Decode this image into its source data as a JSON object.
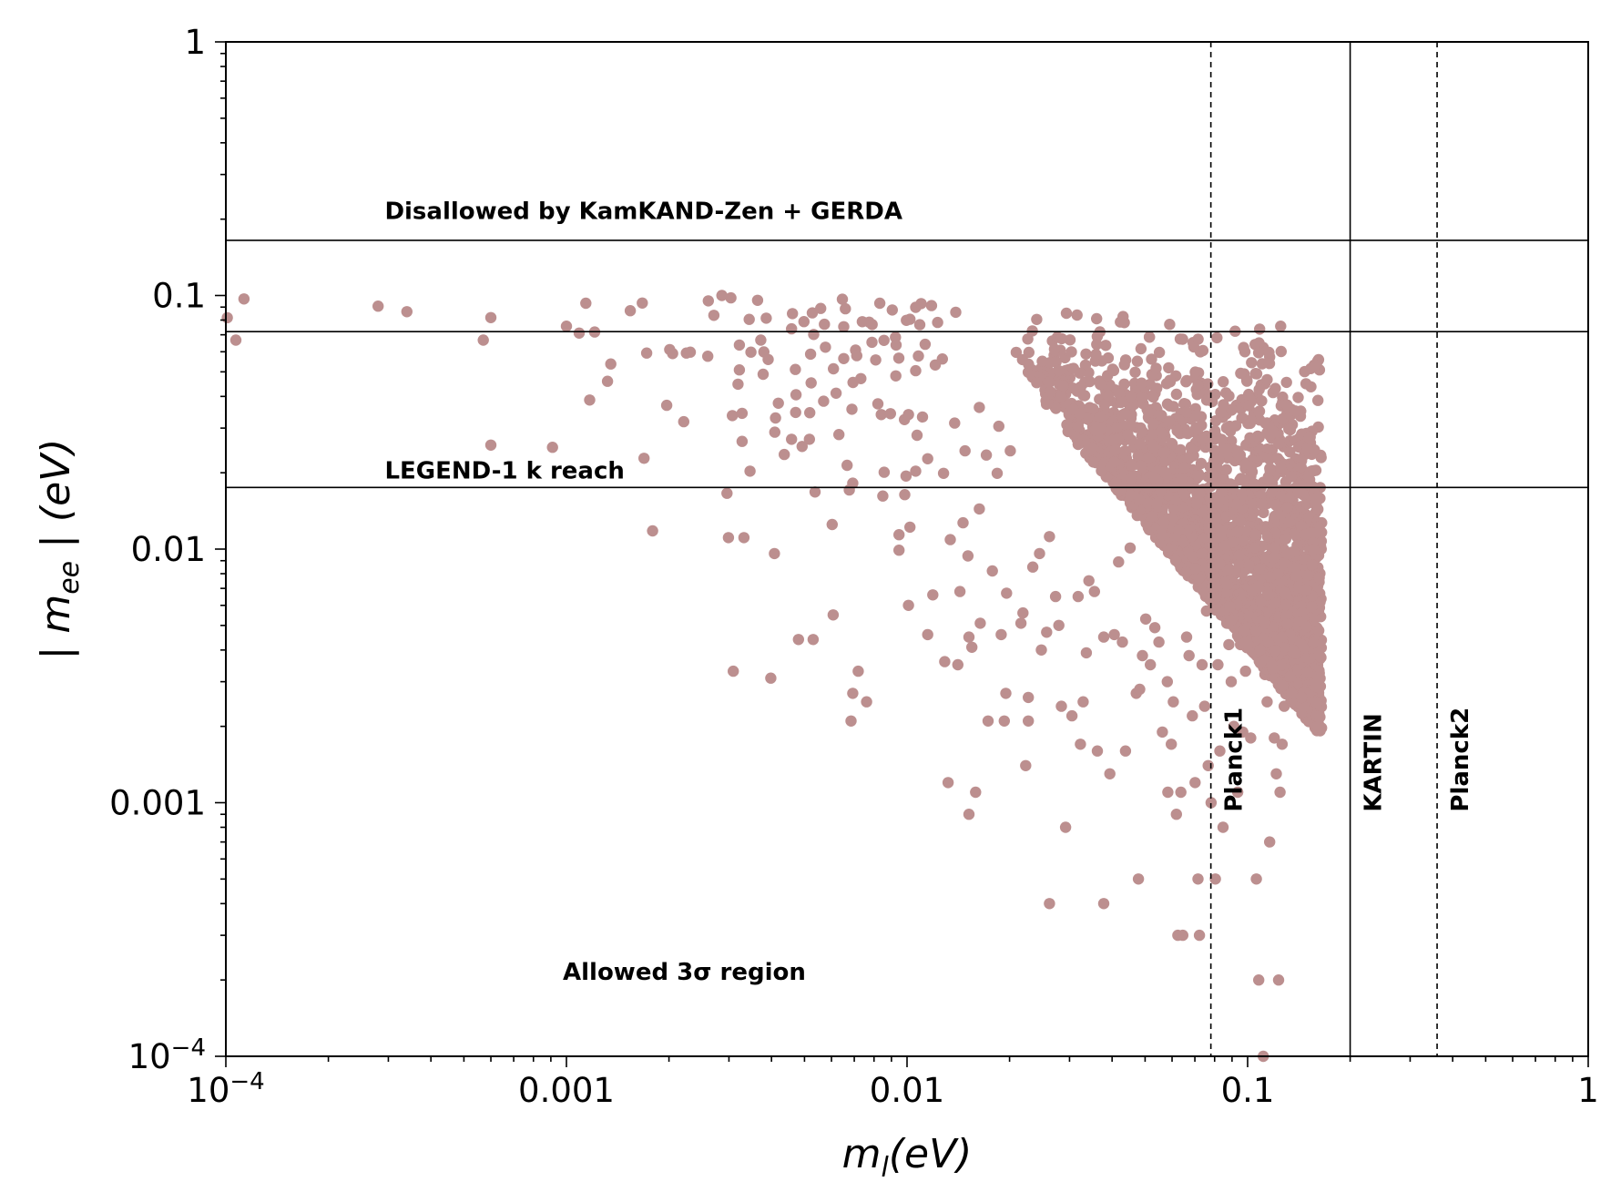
{
  "chart_data": {
    "type": "scatter",
    "xscale": "log",
    "yscale": "log",
    "xlim": [
      0.0001,
      1
    ],
    "ylim": [
      0.0001,
      1
    ],
    "xlabel": {
      "base": "m",
      "sub": "l",
      "unit": "(eV)"
    },
    "ylabel": {
      "prefix": "| ",
      "base": "m",
      "sub": "ee",
      "suffix": " | (eV)"
    },
    "x_ticks": [
      {
        "value": 0.0001,
        "label": "10",
        "sup": "−4"
      },
      {
        "value": 0.001,
        "label": "0.001"
      },
      {
        "value": 0.01,
        "label": "0.01"
      },
      {
        "value": 0.1,
        "label": "0.1"
      },
      {
        "value": 1,
        "label": "1"
      }
    ],
    "y_ticks": [
      {
        "value": 0.0001,
        "label": "10",
        "sup": "−4"
      },
      {
        "value": 0.001,
        "label": "0.001"
      },
      {
        "value": 0.01,
        "label": "0.01"
      },
      {
        "value": 0.1,
        "label": "0.1"
      },
      {
        "value": 1,
        "label": "1"
      }
    ],
    "point_color": "#bc8f8f",
    "hlines": [
      {
        "y": 0.165,
        "style": "solid"
      },
      {
        "y": 0.072,
        "style": "solid"
      },
      {
        "y": 0.0175,
        "style": "solid"
      }
    ],
    "vlines": [
      {
        "x": 0.078,
        "style": "dashed",
        "label": "Planck1"
      },
      {
        "x": 0.2,
        "style": "solid",
        "label": "KARTIN"
      },
      {
        "x": 0.36,
        "style": "dashed",
        "label": "Planck2"
      }
    ],
    "annotations": [
      {
        "text": "Disallowed by KamKAND-Zen + GERDA",
        "x": 0.0003,
        "y": 0.2
      },
      {
        "text": "LEGEND-1 k reach",
        "x": 0.0003,
        "y": 0.019
      },
      {
        "text": "Allowed 3σ region",
        "x": 0.001,
        "y": 0.0002
      }
    ],
    "points": [
      [
        0.000101,
        0.0817
      ],
      [
        0.000107,
        0.0667
      ],
      [
        0.000113,
        0.0969
      ],
      [
        0.00028,
        0.0908
      ],
      [
        0.00034,
        0.0863
      ],
      [
        0.00057,
        0.0667
      ],
      [
        0.0006,
        0.0818
      ],
      [
        0.0006,
        0.0257
      ],
      [
        0.00091,
        0.0252
      ],
      [
        0.001,
        0.0757
      ],
      [
        0.00109,
        0.0711
      ],
      [
        0.00114,
        0.0932
      ],
      [
        0.00121,
        0.0718
      ],
      [
        0.00117,
        0.0387
      ],
      [
        0.00132,
        0.0459
      ],
      [
        0.00135,
        0.0537
      ],
      [
        0.00167,
        0.0934
      ],
      [
        0.00172,
        0.0593
      ],
      [
        0.00154,
        0.0871
      ],
      [
        0.00169,
        0.0228
      ],
      [
        0.00179,
        0.0118
      ],
      [
        0.00201,
        0.0612
      ],
      [
        0.00205,
        0.059
      ],
      [
        0.00197,
        0.0369
      ],
      [
        0.00231,
        0.0598
      ],
      [
        0.00225,
        0.0593
      ],
      [
        0.00221,
        0.0318
      ],
      [
        0.0026,
        0.0576
      ],
      [
        0.00261,
        0.0952
      ],
      [
        0.00271,
        0.0835
      ],
      [
        0.00286,
        0.1
      ],
      [
        0.00304,
        0.0979
      ],
      [
        0.00296,
        0.0166
      ],
      [
        0.00299,
        0.0111
      ],
      [
        0.00307,
        0.0336
      ],
      [
        0.00322,
        0.0638
      ],
      [
        0.00322,
        0.0509
      ],
      [
        0.00319,
        0.0447
      ],
      [
        0.00328,
        0.0343
      ],
      [
        0.00328,
        0.0266
      ],
      [
        0.00332,
        0.0111
      ],
      [
        0.00309,
        0.0033
      ],
      [
        0.00344,
        0.0805
      ],
      [
        0.00348,
        0.0598
      ],
      [
        0.00346,
        0.0203
      ],
      [
        0.00364,
        0.0957
      ],
      [
        0.00372,
        0.0667
      ],
      [
        0.0038,
        0.0599
      ],
      [
        0.00378,
        0.0489
      ],
      [
        0.00391,
        0.0559
      ],
      [
        0.00386,
        0.0814
      ],
      [
        0.00419,
        0.0376
      ],
      [
        0.00409,
        0.0289
      ],
      [
        0.00398,
        0.0031
      ],
      [
        0.00411,
        0.0329
      ],
      [
        0.00408,
        0.0096
      ],
      [
        0.00436,
        0.0236
      ],
      [
        0.00461,
        0.0848
      ],
      [
        0.00458,
        0.0739
      ],
      [
        0.0047,
        0.0511
      ],
      [
        0.00472,
        0.0406
      ],
      [
        0.00471,
        0.0346
      ],
      [
        0.00458,
        0.0271
      ],
      [
        0.0048,
        0.0044
      ],
      [
        0.00492,
        0.0254
      ],
      [
        0.00498,
        0.0789
      ],
      [
        0.00521,
        0.0587
      ],
      [
        0.00523,
        0.0452
      ],
      [
        0.00518,
        0.0345
      ],
      [
        0.00517,
        0.0271
      ],
      [
        0.00527,
        0.0854
      ],
      [
        0.00532,
        0.0702
      ],
      [
        0.00537,
        0.0168
      ],
      [
        0.0053,
        0.0044
      ],
      [
        0.00558,
        0.0889
      ],
      [
        0.00572,
        0.077
      ],
      [
        0.00576,
        0.0625
      ],
      [
        0.00569,
        0.0383
      ],
      [
        0.00603,
        0.0125
      ],
      [
        0.00608,
        0.0514
      ],
      [
        0.00607,
        0.0055
      ],
      [
        0.00619,
        0.0412
      ],
      [
        0.00631,
        0.0283
      ],
      [
        0.00646,
        0.0967
      ],
      [
        0.00659,
        0.0886
      ],
      [
        0.00652,
        0.0753
      ],
      [
        0.00652,
        0.0564
      ],
      [
        0.00667,
        0.0214
      ],
      [
        0.00677,
        0.0171
      ],
      [
        0.00689,
        0.0356
      ],
      [
        0.00694,
        0.0454
      ],
      [
        0.00693,
        0.0182
      ],
      [
        0.00693,
        0.0027
      ],
      [
        0.00685,
        0.0021
      ],
      [
        0.00706,
        0.0609
      ],
      [
        0.00712,
        0.0579
      ],
      [
        0.00719,
        0.0033
      ],
      [
        0.00739,
        0.0788
      ],
      [
        0.00732,
        0.047
      ],
      [
        0.00774,
        0.0785
      ],
      [
        0.0079,
        0.0768
      ],
      [
        0.00761,
        0.0025
      ],
      [
        0.00789,
        0.0654
      ],
      [
        0.00809,
        0.0557
      ],
      [
        0.00832,
        0.0932
      ],
      [
        0.00821,
        0.0374
      ],
      [
        0.0084,
        0.0339
      ],
      [
        0.00856,
        0.0665
      ],
      [
        0.00857,
        0.0201
      ],
      [
        0.00849,
        0.0162
      ],
      [
        0.00894,
        0.0342
      ],
      [
        0.00905,
        0.0877
      ],
      [
        0.00925,
        0.0684
      ],
      [
        0.00929,
        0.0638
      ],
      [
        0.00927,
        0.0482
      ],
      [
        0.00946,
        0.0566
      ],
      [
        0.00947,
        0.0114
      ],
      [
        0.00947,
        0.0099
      ],
      [
        0.00996,
        0.0798
      ],
      [
        0.00983,
        0.0324
      ],
      [
        0.00985,
        0.0164
      ],
      [
        0.00993,
        0.0194
      ],
      [
        0.0102,
        0.0806
      ],
      [
        0.0101,
        0.0339
      ],
      [
        0.0102,
        0.0122
      ],
      [
        0.0101,
        0.006
      ],
      [
        0.0106,
        0.0898
      ],
      [
        0.0108,
        0.0577
      ],
      [
        0.0106,
        0.0505
      ],
      [
        0.0107,
        0.0281
      ],
      [
        0.0106,
        0.0203
      ],
      [
        0.011,
        0.0929
      ],
      [
        0.0109,
        0.0767
      ],
      [
        0.0113,
        0.0642
      ],
      [
        0.0111,
        0.0332
      ],
      [
        0.0115,
        0.0227
      ],
      [
        0.0115,
        0.0046
      ],
      [
        0.0118,
        0.0912
      ],
      [
        0.0121,
        0.0532
      ],
      [
        0.0119,
        0.0066
      ],
      [
        0.0123,
        0.0783
      ],
      [
        0.0127,
        0.0562
      ],
      [
        0.0128,
        0.0199
      ],
      [
        0.0129,
        0.0036
      ],
      [
        0.0132,
        0.0012
      ],
      [
        0.0134,
        0.0109
      ],
      [
        0.0138,
        0.0314
      ],
      [
        0.0139,
        0.0859
      ],
      [
        0.0141,
        0.0035
      ],
      [
        0.0143,
        0.0068
      ],
      [
        0.0148,
        0.0244
      ],
      [
        0.0146,
        0.0127
      ],
      [
        0.0151,
        0.0094
      ],
      [
        0.0152,
        0.0045
      ],
      [
        0.0155,
        0.0041
      ],
      [
        0.0159,
        0.0011
      ],
      [
        0.0152,
        0.0009
      ],
      [
        0.0163,
        0.0362
      ],
      [
        0.0163,
        0.0144
      ],
      [
        0.0164,
        0.0051
      ],
      [
        0.0171,
        0.0235
      ],
      [
        0.0173,
        0.0021
      ],
      [
        0.0178,
        0.0082
      ],
      [
        0.0186,
        0.0305
      ],
      [
        0.0184,
        0.0199
      ],
      [
        0.0189,
        0.0046
      ],
      [
        0.0193,
        0.0021
      ],
      [
        0.0196,
        0.0067
      ],
      [
        0.0195,
        0.0027
      ],
      [
        0.0201,
        0.0244
      ],
      [
        0.0216,
        0.0051
      ],
      [
        0.0219,
        0.0056
      ],
      [
        0.0223,
        0.0014
      ],
      [
        0.0227,
        0.0026
      ],
      [
        0.0227,
        0.0021
      ],
      [
        0.0234,
        0.0085
      ],
      [
        0.0245,
        0.0096
      ],
      [
        0.0248,
        0.004
      ],
      [
        0.0257,
        0.0047
      ],
      [
        0.0262,
        0.0112
      ],
      [
        0.0262,
        0.0004
      ],
      [
        0.0273,
        0.0065
      ],
      [
        0.0279,
        0.005
      ],
      [
        0.0284,
        0.0024
      ],
      [
        0.0292,
        0.0008
      ],
      [
        0.0305,
        0.0022
      ],
      [
        0.0318,
        0.0065
      ],
      [
        0.0323,
        0.0017
      ],
      [
        0.0329,
        0.0025
      ],
      [
        0.0336,
        0.0039
      ],
      [
        0.0342,
        0.0075
      ],
      [
        0.0355,
        0.0068
      ],
      [
        0.0362,
        0.0016
      ],
      [
        0.0378,
        0.0045
      ],
      [
        0.0378,
        0.0004
      ],
      [
        0.0394,
        0.0013
      ],
      [
        0.0406,
        0.0046
      ],
      [
        0.0418,
        0.0089
      ],
      [
        0.0429,
        0.0043
      ],
      [
        0.0438,
        0.0016
      ],
      [
        0.0452,
        0.0101
      ],
      [
        0.0471,
        0.0027
      ],
      [
        0.0478,
        0.0005
      ],
      [
        0.0482,
        0.0028
      ],
      [
        0.0491,
        0.0038
      ],
      [
        0.0502,
        0.0053
      ],
      [
        0.0518,
        0.0035
      ],
      [
        0.0534,
        0.0049
      ],
      [
        0.0549,
        0.0043
      ],
      [
        0.0562,
        0.0019
      ],
      [
        0.0581,
        0.003
      ],
      [
        0.0583,
        0.0011
      ],
      [
        0.0597,
        0.0017
      ],
      [
        0.0605,
        0.0025
      ],
      [
        0.0618,
        0.0009
      ],
      [
        0.0624,
        0.0003
      ],
      [
        0.0637,
        0.0011
      ],
      [
        0.0645,
        0.0003
      ],
      [
        0.0662,
        0.0045
      ],
      [
        0.0673,
        0.0038
      ],
      [
        0.0688,
        0.0022
      ],
      [
        0.0701,
        0.0012
      ],
      [
        0.0715,
        0.0005
      ],
      [
        0.0722,
        0.0003
      ],
      [
        0.0735,
        0.0035
      ],
      [
        0.0748,
        0.0024
      ],
      [
        0.0757,
        0.0057
      ],
      [
        0.0766,
        0.0014
      ],
      [
        0.0781,
        0.001
      ],
      [
        0.0804,
        0.0005
      ],
      [
        0.0818,
        0.0035
      ],
      [
        0.0829,
        0.0016
      ],
      [
        0.0847,
        0.0008
      ],
      [
        0.0863,
        0.0057
      ],
      [
        0.0881,
        0.0042
      ],
      [
        0.0895,
        0.003
      ],
      [
        0.0911,
        0.002
      ],
      [
        0.0935,
        0.0011
      ],
      [
        0.0953,
        0.0042
      ],
      [
        0.0968,
        0.0019
      ],
      [
        0.0986,
        0.0033
      ],
      [
        0.1004,
        0.006
      ],
      [
        0.1021,
        0.0018
      ],
      [
        0.1043,
        0.0047
      ],
      [
        0.1061,
        0.0005
      ],
      [
        0.1078,
        0.0002
      ],
      [
        0.1093,
        0.0037
      ],
      [
        0.1112,
        0.0001
      ],
      [
        0.1124,
        0.0032
      ],
      [
        0.1141,
        0.0025
      ],
      [
        0.1161,
        0.0007
      ],
      [
        0.1179,
        0.004
      ],
      [
        0.1198,
        0.0018
      ],
      [
        0.1214,
        0.0013
      ],
      [
        0.1233,
        0.0002
      ],
      [
        0.1245,
        0.0011
      ],
      [
        0.1263,
        0.0017
      ],
      [
        0.1281,
        0.0024
      ],
      [
        0.1297,
        0.0063
      ],
      [
        0.1315,
        0.0086
      ],
      [
        0.1324,
        0.0145
      ],
      [
        0.1336,
        0.0205
      ],
      [
        0.1342,
        0.0121
      ]
    ],
    "dense_region": {
      "xmin": 0.02,
      "xmax": 0.165,
      "ymin": 0.0018,
      "ymax": 0.1,
      "count": 2600
    }
  }
}
